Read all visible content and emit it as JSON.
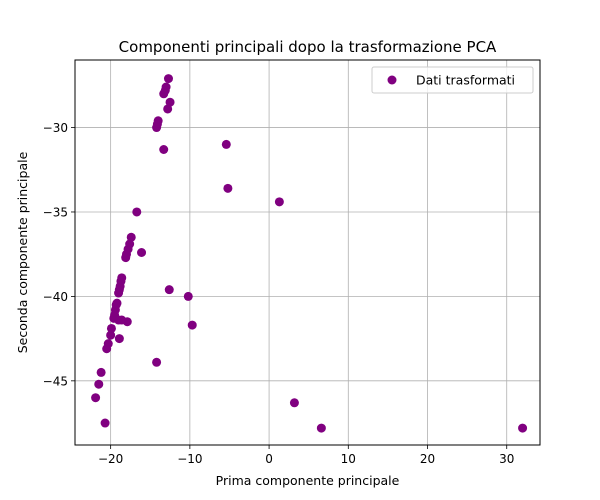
{
  "chart_data": {
    "type": "scatter",
    "title": "Componenti principali dopo la trasformazione PCA",
    "xlabel": "Prima componente principale",
    "ylabel": "Seconda componente principale",
    "xlim": [
      -24.5,
      34.2
    ],
    "ylim": [
      -48.8,
      -26.0
    ],
    "xticks": [
      -20,
      -10,
      0,
      10,
      20,
      30
    ],
    "yticks": [
      -45,
      -40,
      -35,
      -30
    ],
    "xtick_labels": [
      "−20",
      "−10",
      "0",
      "10",
      "20",
      "30"
    ],
    "ytick_labels": [
      "−45",
      "−40",
      "−35",
      "−30"
    ],
    "grid": true,
    "legend": {
      "position": "top-right",
      "entries": [
        "Dati trasformati"
      ]
    },
    "series": [
      {
        "name": "Dati trasformati",
        "color": "#800080",
        "points": [
          {
            "x": -12.7,
            "y": -27.1
          },
          {
            "x": -13.0,
            "y": -27.6
          },
          {
            "x": -13.1,
            "y": -27.8
          },
          {
            "x": -13.3,
            "y": -28.0
          },
          {
            "x": -12.5,
            "y": -28.5
          },
          {
            "x": -12.8,
            "y": -28.9
          },
          {
            "x": -14.0,
            "y": -29.6
          },
          {
            "x": -14.1,
            "y": -29.8
          },
          {
            "x": -14.2,
            "y": -30.0
          },
          {
            "x": -13.3,
            "y": -31.3
          },
          {
            "x": -5.4,
            "y": -31.0
          },
          {
            "x": -5.2,
            "y": -33.6
          },
          {
            "x": 1.3,
            "y": -34.4
          },
          {
            "x": -16.7,
            "y": -35.0
          },
          {
            "x": -17.4,
            "y": -36.5
          },
          {
            "x": -17.6,
            "y": -36.9
          },
          {
            "x": -17.8,
            "y": -37.2
          },
          {
            "x": -18.0,
            "y": -37.5
          },
          {
            "x": -18.1,
            "y": -37.7
          },
          {
            "x": -16.1,
            "y": -37.4
          },
          {
            "x": -18.6,
            "y": -38.9
          },
          {
            "x": -18.7,
            "y": -39.1
          },
          {
            "x": -18.8,
            "y": -39.4
          },
          {
            "x": -18.9,
            "y": -39.6
          },
          {
            "x": -19.0,
            "y": -39.8
          },
          {
            "x": -12.6,
            "y": -39.6
          },
          {
            "x": -10.2,
            "y": -40.0
          },
          {
            "x": -19.2,
            "y": -40.4
          },
          {
            "x": -19.3,
            "y": -40.5
          },
          {
            "x": -19.4,
            "y": -40.8
          },
          {
            "x": -19.5,
            "y": -41.1
          },
          {
            "x": -19.6,
            "y": -41.3
          },
          {
            "x": -19.0,
            "y": -41.4
          },
          {
            "x": -18.6,
            "y": -41.4
          },
          {
            "x": -17.9,
            "y": -41.5
          },
          {
            "x": -9.7,
            "y": -41.7
          },
          {
            "x": -19.9,
            "y": -41.9
          },
          {
            "x": -20.0,
            "y": -42.3
          },
          {
            "x": -18.9,
            "y": -42.5
          },
          {
            "x": -20.3,
            "y": -42.8
          },
          {
            "x": -20.5,
            "y": -43.1
          },
          {
            "x": -14.2,
            "y": -43.9
          },
          {
            "x": -21.2,
            "y": -44.5
          },
          {
            "x": -21.5,
            "y": -45.2
          },
          {
            "x": -21.9,
            "y": -46.0
          },
          {
            "x": 3.2,
            "y": -46.3
          },
          {
            "x": -20.7,
            "y": -47.5
          },
          {
            "x": 6.6,
            "y": -47.8
          },
          {
            "x": 32.0,
            "y": -47.8
          }
        ]
      }
    ]
  }
}
